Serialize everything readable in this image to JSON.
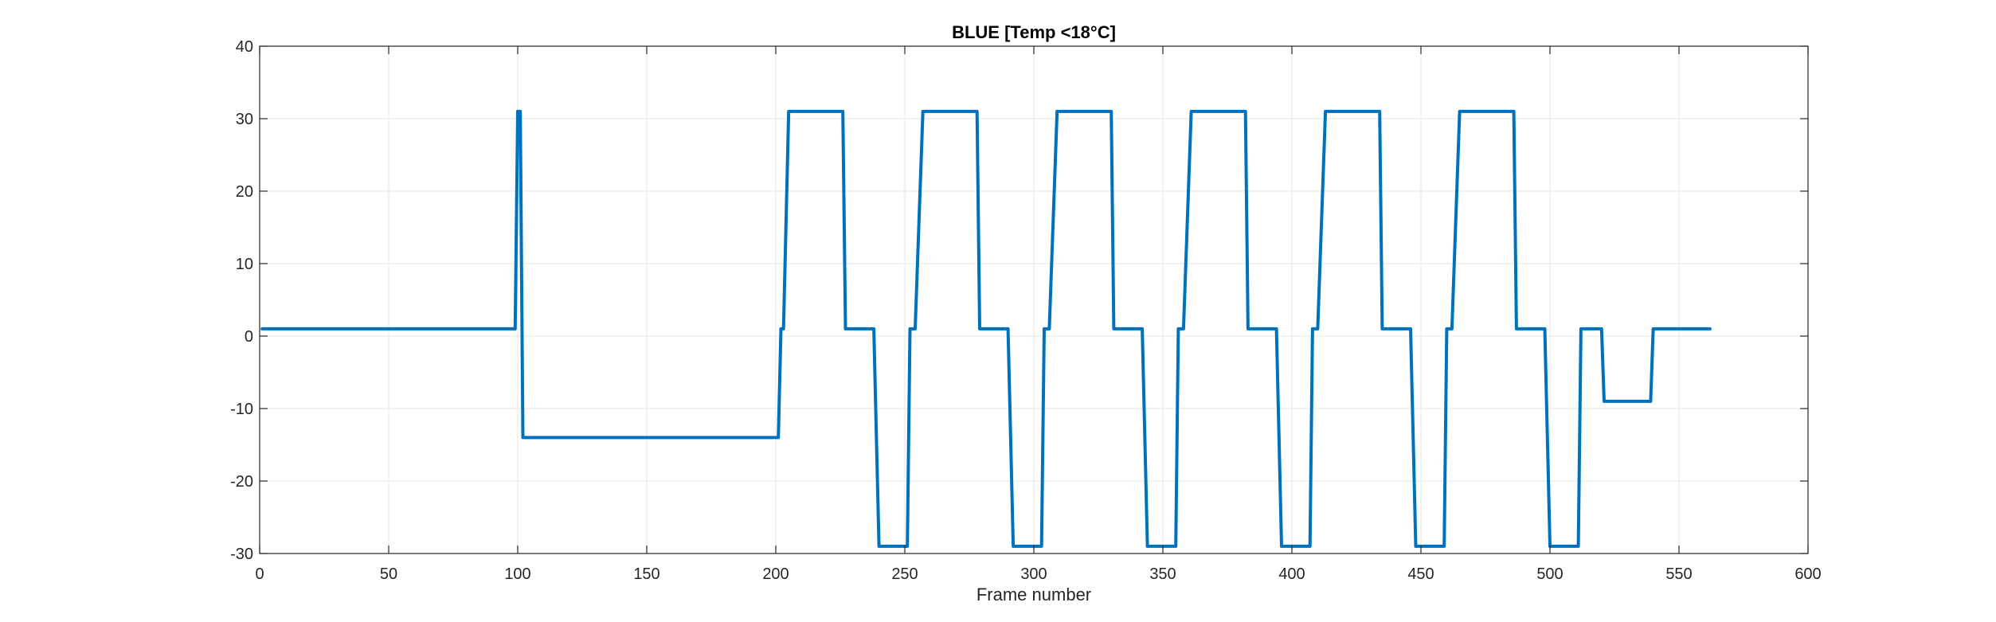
{
  "chart_data": {
    "type": "line",
    "title": "BLUE [Temp <18°C]",
    "xlabel": "Frame number",
    "ylabel": "",
    "xlim": [
      0,
      600
    ],
    "ylim": [
      -30,
      40
    ],
    "xticks": [
      0,
      50,
      100,
      150,
      200,
      250,
      300,
      350,
      400,
      450,
      500,
      550,
      600
    ],
    "yticks": [
      -30,
      -20,
      -10,
      0,
      10,
      20,
      30,
      40
    ],
    "grid": true,
    "colors": {
      "line": "#0072BD",
      "grid": "#E6E6E6",
      "axis": "#262626"
    },
    "series": [
      {
        "x": [
          1,
          99,
          100,
          101,
          102,
          200,
          201,
          202,
          203,
          205,
          226,
          227,
          238,
          240,
          251,
          252,
          254,
          257,
          278,
          279,
          290,
          292,
          303,
          304,
          306,
          309,
          330,
          331,
          342,
          344,
          355,
          356,
          358,
          361,
          382,
          383,
          394,
          396,
          407,
          408,
          410,
          413,
          434,
          435,
          446,
          448,
          459,
          460,
          462,
          465,
          486,
          487,
          498,
          500,
          511,
          512,
          519,
          520,
          521,
          539,
          540,
          562
        ],
        "y": [
          1,
          1,
          31,
          31,
          -14,
          -14,
          -14,
          1,
          1,
          31,
          31,
          1,
          1,
          -29,
          -29,
          1,
          1,
          31,
          31,
          1,
          1,
          -29,
          -29,
          1,
          1,
          31,
          31,
          1,
          1,
          -29,
          -29,
          1,
          1,
          31,
          31,
          1,
          1,
          -29,
          -29,
          1,
          1,
          31,
          31,
          1,
          1,
          -29,
          -29,
          1,
          1,
          31,
          31,
          1,
          1,
          -29,
          -29,
          1,
          1,
          1,
          -9,
          -9,
          1,
          1
        ]
      }
    ]
  }
}
